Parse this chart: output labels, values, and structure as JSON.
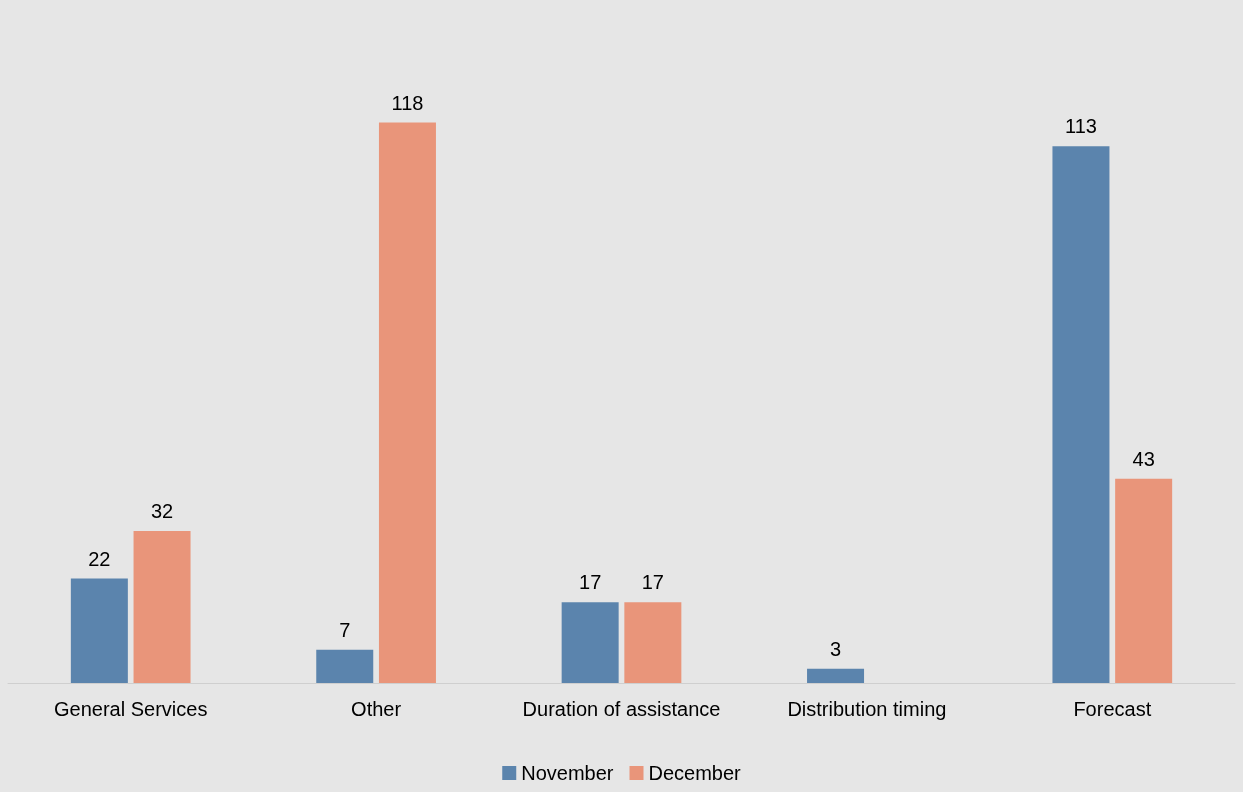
{
  "chart_data": {
    "type": "bar",
    "categories": [
      "General Services",
      "Other",
      "Duration of assistance",
      "Distribution timing",
      "Forecast"
    ],
    "series": [
      {
        "name": "November",
        "color": "#5b84ad",
        "values": [
          22,
          7,
          17,
          3,
          113
        ]
      },
      {
        "name": "December",
        "color": "#e9957a",
        "values": [
          32,
          118,
          17,
          null,
          43
        ]
      }
    ],
    "data_labels": true,
    "legend": "bottom",
    "grid": false
  }
}
